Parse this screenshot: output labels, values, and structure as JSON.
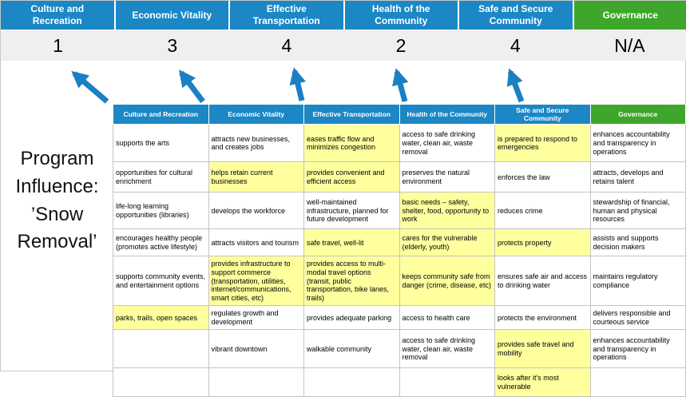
{
  "slide_title": "Program Influence: ’Snow Removal’",
  "colors": {
    "header_blue": "#1B87C5",
    "header_green": "#3EA62A",
    "score_band_bg": "#EFEFEF",
    "highlight_yellow": "#FFFF9E",
    "arrow_blue": "#1B7FC4"
  },
  "summary": {
    "columns": [
      {
        "label": "Culture and Recreation",
        "score": "1"
      },
      {
        "label": "Economic Vitality",
        "score": "3"
      },
      {
        "label": "Effective Transportation",
        "score": "4"
      },
      {
        "label": "Health of the Community",
        "score": "2"
      },
      {
        "label": "Safe and Secure Community",
        "score": "4"
      },
      {
        "label": "Governance",
        "score": "N/A"
      }
    ]
  },
  "matrix": {
    "headers": [
      "Culture and Recreation",
      "Economic Vitality",
      "Effective Transportation",
      "Health of the Community",
      "Safe and Secure Community",
      "Governance"
    ],
    "rows": [
      [
        {
          "t": "supports the arts",
          "h": false
        },
        {
          "t": "attracts new businesses, and creates jobs",
          "h": false
        },
        {
          "t": "eases traffic flow and minimizes congestion",
          "h": true
        },
        {
          "t": "access to safe drinking water, clean air, waste removal",
          "h": false
        },
        {
          "t": "is prepared to respond to emergencies",
          "h": true
        },
        {
          "t": "enhances accountability and transparency in operations",
          "h": false
        }
      ],
      [
        {
          "t": "opportunities for cultural enrichment",
          "h": false
        },
        {
          "t": "helps retain current businesses",
          "h": true
        },
        {
          "t": "provides convenient and efficient access",
          "h": true
        },
        {
          "t": "preserves the natural environment",
          "h": false
        },
        {
          "t": "enforces the law",
          "h": false
        },
        {
          "t": "attracts, develops and retains talent",
          "h": false
        }
      ],
      [
        {
          "t": "life-long learning opportunities (libraries)",
          "h": false
        },
        {
          "t": "develops the workforce",
          "h": false
        },
        {
          "t": "well-maintained infrastructure, planned for future development",
          "h": false
        },
        {
          "t": "basic needs – safety, shelter, food, opportunity to work",
          "h": true
        },
        {
          "t": "reduces crime",
          "h": false
        },
        {
          "t": "stewardship of financial, human and physical resources",
          "h": false
        }
      ],
      [
        {
          "t": "encourages healthy people (promotes active lifestyle)",
          "h": false
        },
        {
          "t": "attracts visitors and tourism",
          "h": false
        },
        {
          "t": "safe travel, well-lit",
          "h": true
        },
        {
          "t": "cares for the vulnerable (elderly, youth)",
          "h": true
        },
        {
          "t": "protects property",
          "h": true
        },
        {
          "t": "assists and supports decision makers",
          "h": false
        }
      ],
      [
        {
          "t": "supports community events, and entertainment options",
          "h": false
        },
        {
          "t": "provides infrastructure to support commerce (transportation, utilities, internet/communications, smart cities, etc)",
          "h": true
        },
        {
          "t": "provides access to multi-modal travel options (transit, public transportation, bike lanes, trails)",
          "h": true
        },
        {
          "t": "keeps community safe from danger (crime, disease, etc)",
          "h": true
        },
        {
          "t": "ensures safe air and access to drinking water",
          "h": false
        },
        {
          "t": "maintains regulatory compliance",
          "h": false
        }
      ],
      [
        {
          "t": "parks, trails, open spaces",
          "h": true
        },
        {
          "t": "regulates growth and development",
          "h": false
        },
        {
          "t": "provides adequate parking",
          "h": false
        },
        {
          "t": "access to health care",
          "h": false
        },
        {
          "t": "protects the environment",
          "h": false
        },
        {
          "t": "delivers responsible and courteous service",
          "h": false
        }
      ],
      [
        {
          "t": "",
          "h": false
        },
        {
          "t": "vibrant downtown",
          "h": false
        },
        {
          "t": "walkable community",
          "h": false
        },
        {
          "t": "access to safe drinking water, clean air, waste removal",
          "h": false
        },
        {
          "t": "provides safe travel and mobility",
          "h": true
        },
        {
          "t": "enhances accountability and transparency in operations",
          "h": false
        }
      ],
      [
        {
          "t": "",
          "h": false
        },
        {
          "t": "",
          "h": false
        },
        {
          "t": "",
          "h": false
        },
        {
          "t": "",
          "h": false
        },
        {
          "t": "looks after it's most vulnerable",
          "h": true
        },
        {
          "t": "",
          "h": false
        }
      ]
    ]
  }
}
